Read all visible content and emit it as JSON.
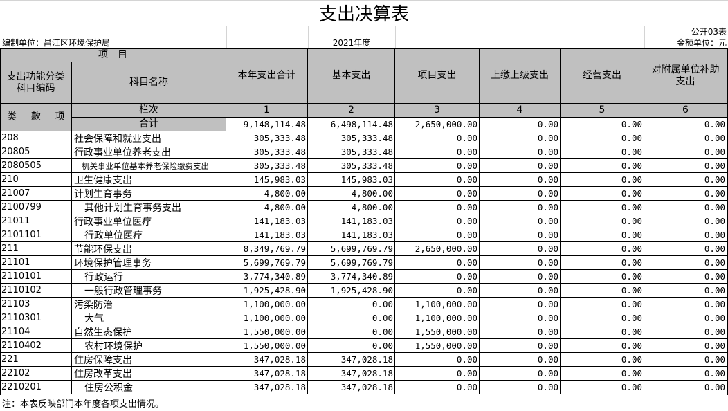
{
  "title": "支出决算表",
  "form_no": "公开03表",
  "unit": "编制单位：昌江区环境保护局",
  "year": "2021年度",
  "currency": "金额单位：元",
  "header": {
    "item": "项　目",
    "code": "支出功能分类科目编码",
    "name": "科目名称",
    "class": "类",
    "section": "款",
    "entry": "项",
    "row_no_label": "栏次",
    "columns": [
      "本年支出合计",
      "基本支出",
      "项目支出",
      "上缴上级支出",
      "经营支出",
      "对附属单位补助支出"
    ],
    "column_numbers": [
      1,
      2,
      3,
      4,
      5,
      6
    ]
  },
  "total": {
    "label": "合计",
    "values": [
      "9,148,114.48",
      "6,498,114.48",
      "2,650,000.00",
      "0.00",
      "0.00",
      "0.00"
    ]
  },
  "rows": [
    {
      "code": "208",
      "name": "社会保障和就业支出",
      "values": [
        "305,333.48",
        "305,333.48",
        "0.00",
        "0.00",
        "0.00",
        "0.00"
      ]
    },
    {
      "code": "20805",
      "name": "行政事业单位养老支出",
      "values": [
        "305,333.48",
        "305,333.48",
        "0.00",
        "0.00",
        "0.00",
        "0.00"
      ]
    },
    {
      "code": "2080505",
      "name": "机关事业单位基本养老保险缴费支出",
      "values": [
        "305,333.48",
        "305,333.48",
        "0.00",
        "0.00",
        "0.00",
        "0.00"
      ]
    },
    {
      "code": "210",
      "name": "卫生健康支出",
      "values": [
        "145,983.03",
        "145,983.03",
        "0.00",
        "0.00",
        "0.00",
        "0.00"
      ]
    },
    {
      "code": "21007",
      "name": "计划生育事务",
      "values": [
        "4,800.00",
        "4,800.00",
        "0.00",
        "0.00",
        "0.00",
        "0.00"
      ]
    },
    {
      "code": "2100799",
      "name": "其他计划生育事务支出",
      "values": [
        "4,800.00",
        "4,800.00",
        "0.00",
        "0.00",
        "0.00",
        "0.00"
      ]
    },
    {
      "code": "21011",
      "name": "行政事业单位医疗",
      "values": [
        "141,183.03",
        "141,183.03",
        "0.00",
        "0.00",
        "0.00",
        "0.00"
      ]
    },
    {
      "code": "2101101",
      "name": "行政单位医疗",
      "values": [
        "141,183.03",
        "141,183.03",
        "0.00",
        "0.00",
        "0.00",
        "0.00"
      ]
    },
    {
      "code": "211",
      "name": "节能环保支出",
      "values": [
        "8,349,769.79",
        "5,699,769.79",
        "2,650,000.00",
        "0.00",
        "0.00",
        "0.00"
      ]
    },
    {
      "code": "21101",
      "name": "环境保护管理事务",
      "values": [
        "5,699,769.79",
        "5,699,769.79",
        "0.00",
        "0.00",
        "0.00",
        "0.00"
      ]
    },
    {
      "code": "2110101",
      "name": "行政运行",
      "values": [
        "3,774,340.89",
        "3,774,340.89",
        "0.00",
        "0.00",
        "0.00",
        "0.00"
      ]
    },
    {
      "code": "2110102",
      "name": "一般行政管理事务",
      "values": [
        "1,925,428.90",
        "1,925,428.90",
        "0.00",
        "0.00",
        "0.00",
        "0.00"
      ]
    },
    {
      "code": "21103",
      "name": "污染防治",
      "values": [
        "1,100,000.00",
        "0.00",
        "1,100,000.00",
        "0.00",
        "0.00",
        "0.00"
      ]
    },
    {
      "code": "2110301",
      "name": "大气",
      "values": [
        "1,100,000.00",
        "0.00",
        "1,100,000.00",
        "0.00",
        "0.00",
        "0.00"
      ]
    },
    {
      "code": "21104",
      "name": "自然生态保护",
      "values": [
        "1,550,000.00",
        "0.00",
        "1,550,000.00",
        "0.00",
        "0.00",
        "0.00"
      ]
    },
    {
      "code": "2110402",
      "name": "农村环境保护",
      "values": [
        "1,550,000.00",
        "0.00",
        "1,550,000.00",
        "0.00",
        "0.00",
        "0.00"
      ]
    },
    {
      "code": "221",
      "name": "住房保障支出",
      "values": [
        "347,028.18",
        "347,028.18",
        "0.00",
        "0.00",
        "0.00",
        "0.00"
      ]
    },
    {
      "code": "22102",
      "name": "住房改革支出",
      "values": [
        "347,028.18",
        "347,028.18",
        "0.00",
        "0.00",
        "0.00",
        "0.00"
      ]
    },
    {
      "code": "2210201",
      "name": "住房公积金",
      "values": [
        "347,028.18",
        "347,028.18",
        "0.00",
        "0.00",
        "0.00",
        "0.00"
      ]
    }
  ],
  "note": "注：本表反映部门本年度各项支出情况。"
}
